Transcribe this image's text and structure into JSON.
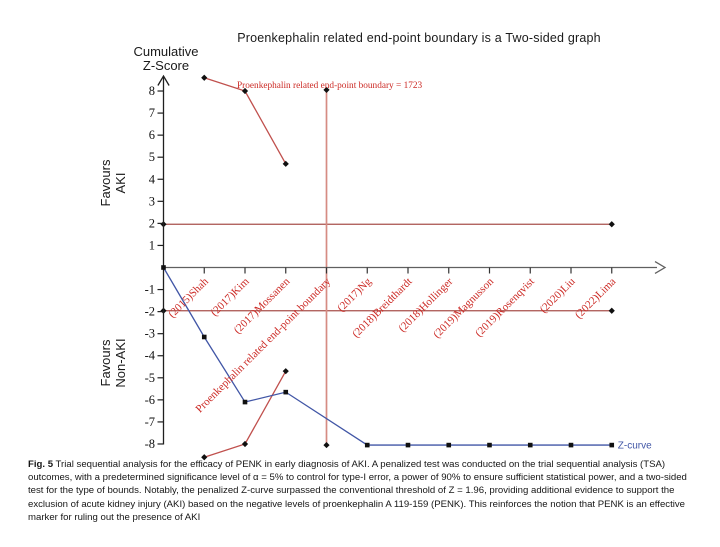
{
  "figure": {
    "caption_label": "Fig. 5",
    "caption_text": " Trial sequential analysis for the efficacy of PENK in early diagnosis of AKI. A penalized test was conducted on the trial sequential analysis (TSA) outcomes, with a predetermined significance level of α = 5% to control for type-I error, a power of 90% to ensure sufficient statistical power, and a two-sided test for the type of bounds. Notably, the penalized Z-curve surpassed the conventional threshold of Z = 1.96, providing additional evidence to support the exclusion of acute kidney injury (AKI) based on the negative levels of proenkephalin A 119-159 (PENK). This reinforces the notion that PENK is an effective marker for ruling out the presence of AKI"
  },
  "chart_data": {
    "type": "line",
    "title": "Proenkephalin related end-point boundary is a Two-sided graph",
    "y_axis_label": [
      "Cumulative",
      "Z-Score"
    ],
    "favours_aki": [
      "Favours",
      "AKI"
    ],
    "favours_non_aki": [
      "Favours",
      "Non-AKI"
    ],
    "ylim": [
      -8.6,
      8.7
    ],
    "y_ticks": [
      8,
      7,
      6,
      5,
      4,
      3,
      2,
      1,
      -1,
      -2,
      -3,
      -4,
      -5,
      -6,
      -7,
      -8
    ],
    "grid": "off",
    "categories": [
      "(2015)Shah",
      "(2017)Kim",
      "(2017)Mossanen",
      "Proenkephalin related end-point boundary",
      "(2017)Ng",
      "(2018)Breidthardt",
      "(2018)Hollinger",
      "(2019)Magnusson",
      "(2019)Rosenqvist",
      "(2020)Liu",
      "(2022)Lima"
    ],
    "series": [
      {
        "name": "upper-monitoring-boundary",
        "marker": "diamond",
        "color_key": "red_line",
        "x": [
          1,
          2,
          3
        ],
        "z": [
          8.6,
          8.0,
          4.7
        ]
      },
      {
        "name": "lower-monitoring-boundary",
        "marker": "diamond",
        "color_key": "red_line",
        "x": [
          1,
          2,
          3
        ],
        "z": [
          -8.6,
          -8.0,
          -4.7
        ]
      },
      {
        "name": "z-curve",
        "marker": "square",
        "color_key": "blue",
        "x": [
          0,
          1,
          2,
          3,
          5,
          6,
          7,
          8,
          9,
          10,
          11
        ],
        "z": [
          0,
          -3.15,
          -6.1,
          -5.65,
          -8.05,
          -8.05,
          -8.05,
          -8.05,
          -8.05,
          -8.05,
          -8.05
        ]
      }
    ],
    "threshold_lines": [
      {
        "z": 1.96,
        "x_start": 0,
        "x_end": 11
      },
      {
        "z": -1.96,
        "x_start": 0,
        "x_end": 11
      }
    ],
    "information_size_line": {
      "x": 4,
      "z_top": 8.05,
      "z_bottom": -8.05,
      "annotation": "Proenkephalin related end-point boundary = 1723"
    },
    "z_curve_label": "Z-curve",
    "colors": {
      "red_line": "#c0504d",
      "red_threshold": "#a8504b",
      "red_vertical": "#d68c83",
      "red_text": "#cc2b26",
      "blue": "#4156a6",
      "axis_x": "#606060",
      "axis_y": "#1f1f1f",
      "marker": "#101010"
    }
  }
}
